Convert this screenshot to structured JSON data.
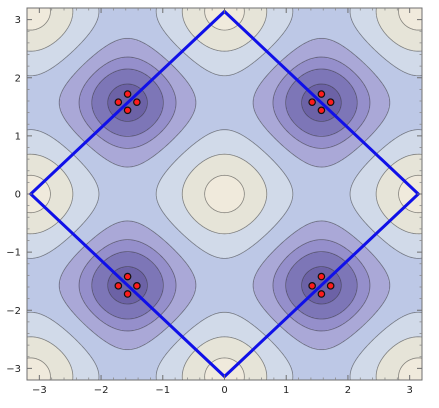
{
  "chart_data": {
    "type": "contour",
    "title": "",
    "xlabel": "",
    "ylabel": "",
    "xlim": [
      -3.2,
      3.2
    ],
    "ylim": [
      -3.2,
      3.2
    ],
    "x_ticks": [
      -3,
      -2,
      -1,
      0,
      1,
      2,
      3
    ],
    "y_ticks": [
      -3,
      -2,
      -1,
      0,
      1,
      2,
      3
    ],
    "x_tick_labels": [
      "−3",
      "−2",
      "−1",
      "0",
      "1",
      "2",
      "3"
    ],
    "y_tick_labels": [
      "−3",
      "−2",
      "−1",
      "0",
      "1",
      "2",
      "3"
    ],
    "grid": false,
    "legend": "none",
    "contour_field": {
      "description_equation": "cos(x)^2 + cos(y)^2",
      "minima": [
        {
          "x": -1.57,
          "y": 1.57
        },
        {
          "x": 1.57,
          "y": 1.57
        },
        {
          "x": -1.57,
          "y": -1.57
        },
        {
          "x": 1.57,
          "y": -1.57
        }
      ],
      "levels": [
        0.1,
        0.3,
        0.5,
        0.8,
        1.2,
        1.6,
        1.9
      ],
      "colors": [
        "#6c62a6",
        "#7d76b7",
        "#958fcb",
        "#aaa8d7",
        "#bdc8e6",
        "#d1dae9",
        "#e6e4d8",
        "#f0eadc"
      ]
    },
    "diamond": {
      "vertices": [
        {
          "x": 0.0,
          "y": 3.14
        },
        {
          "x": 3.14,
          "y": 0.0
        },
        {
          "x": 0.0,
          "y": -3.14
        },
        {
          "x": -3.14,
          "y": 0.0
        }
      ],
      "color": "#1010e8"
    },
    "points": [
      {
        "x": -1.57,
        "y": 1.72
      },
      {
        "x": -1.72,
        "y": 1.58
      },
      {
        "x": -1.42,
        "y": 1.58
      },
      {
        "x": -1.57,
        "y": 1.44
      },
      {
        "x": 1.57,
        "y": 1.72
      },
      {
        "x": 1.42,
        "y": 1.58
      },
      {
        "x": 1.72,
        "y": 1.58
      },
      {
        "x": 1.57,
        "y": 1.44
      },
      {
        "x": -1.57,
        "y": -1.42
      },
      {
        "x": -1.72,
        "y": -1.58
      },
      {
        "x": -1.42,
        "y": -1.58
      },
      {
        "x": -1.57,
        "y": -1.72
      },
      {
        "x": 1.57,
        "y": -1.42
      },
      {
        "x": 1.42,
        "y": -1.58
      },
      {
        "x": 1.72,
        "y": -1.58
      },
      {
        "x": 1.57,
        "y": -1.72
      }
    ],
    "point_fill": "#ff1c1c",
    "point_edge": "#111111",
    "line_color": "#333333"
  }
}
